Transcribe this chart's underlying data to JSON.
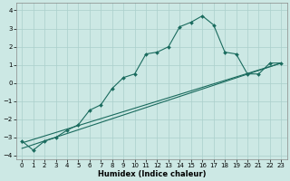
{
  "xlabel": "Humidex (Indice chaleur)",
  "background_color": "#cce8e4",
  "grid_color": "#aacfcb",
  "line_color": "#1a6b5e",
  "xlim": [
    -0.5,
    23.5
  ],
  "ylim": [
    -4.2,
    4.4
  ],
  "yticks": [
    -4,
    -3,
    -2,
    -1,
    0,
    1,
    2,
    3,
    4
  ],
  "xticks": [
    0,
    1,
    2,
    3,
    4,
    5,
    6,
    7,
    8,
    9,
    10,
    11,
    12,
    13,
    14,
    15,
    16,
    17,
    18,
    19,
    20,
    21,
    22,
    23
  ],
  "curve_x": [
    0,
    1,
    2,
    3,
    4,
    5,
    6,
    7,
    8,
    9,
    10,
    11,
    12,
    13,
    14,
    15,
    16,
    17,
    18,
    19,
    20,
    21,
    22,
    23
  ],
  "curve_y": [
    -3.2,
    -3.7,
    -3.2,
    -3.0,
    -2.6,
    -2.3,
    -1.5,
    -1.2,
    -0.3,
    0.3,
    0.5,
    1.6,
    1.7,
    2.0,
    3.1,
    3.35,
    3.7,
    3.2,
    1.7,
    1.6,
    0.5,
    0.5,
    1.1,
    1.1
  ],
  "trend1_x": [
    0,
    23
  ],
  "trend1_y": [
    -3.3,
    1.1
  ],
  "trend2_x": [
    0,
    23
  ],
  "trend2_y": [
    -3.6,
    1.1
  ],
  "tick_fontsize": 5.0,
  "xlabel_fontsize": 6.0
}
